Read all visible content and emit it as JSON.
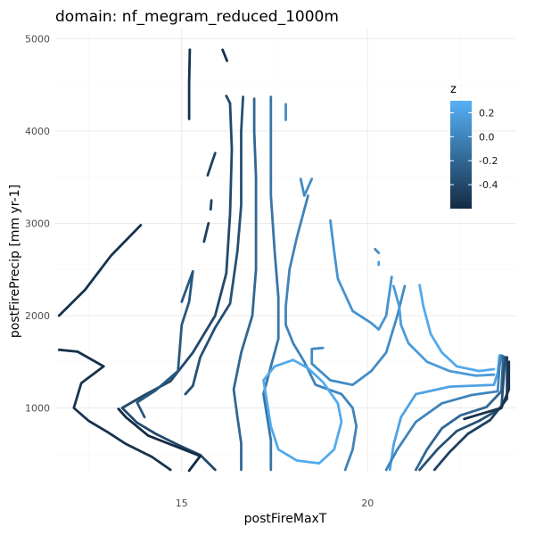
{
  "chart_data": {
    "type": "contour",
    "title": "domain: nf_megram_reduced_1000m",
    "xlabel": "postFireMaxT",
    "ylabel": "postFirePrecip [mm yr-1]",
    "xlim": [
      11.6,
      24.0
    ],
    "ylim": [
      300,
      5100
    ],
    "x_ticks": [
      {
        "value": 15,
        "label": "15"
      },
      {
        "value": 20,
        "label": "20"
      }
    ],
    "y_ticks": [
      {
        "value": 1000,
        "label": "1000"
      },
      {
        "value": 2000,
        "label": "2000"
      },
      {
        "value": 3000,
        "label": "3000"
      },
      {
        "value": 4000,
        "label": "4000"
      },
      {
        "value": 5000,
        "label": "5000"
      }
    ],
    "grid": true,
    "legend": {
      "title": "z",
      "placement": "right",
      "range": [
        -0.6,
        0.3
      ],
      "ticks": [
        {
          "value": 0.2,
          "label": "0.2"
        },
        {
          "value": 0.0,
          "label": "0.0"
        },
        {
          "value": -0.2,
          "label": "-0.2"
        },
        {
          "value": -0.4,
          "label": "-0.4"
        }
      ],
      "color_low": "#132b43",
      "color_high": "#56b1f7"
    },
    "contours": [
      {
        "z": -0.55,
        "points": [
          [
            11.7,
            2000
          ],
          [
            12.4,
            2280
          ],
          [
            13.1,
            2650
          ],
          [
            13.9,
            2980
          ]
        ]
      },
      {
        "z": -0.55,
        "points": [
          [
            11.7,
            1630
          ],
          [
            12.2,
            1610
          ],
          [
            12.9,
            1450
          ],
          [
            12.3,
            1270
          ],
          [
            12.1,
            1000
          ],
          [
            12.5,
            860
          ],
          [
            13.0,
            740
          ],
          [
            13.5,
            610
          ],
          [
            14.2,
            470
          ],
          [
            14.7,
            330
          ]
        ]
      },
      {
        "z": -0.55,
        "points": [
          [
            15.2,
            4130
          ],
          [
            15.2,
            4520
          ],
          [
            15.22,
            4880
          ]
        ]
      },
      {
        "z": -0.55,
        "points": [
          [
            16.1,
            4880
          ],
          [
            16.22,
            4760
          ]
        ]
      },
      {
        "z": -0.45,
        "points": [
          [
            15.8,
            3250
          ],
          [
            15.78,
            3150
          ]
        ]
      },
      {
        "z": -0.45,
        "points": [
          [
            15.6,
            2800
          ],
          [
            15.72,
            3000
          ]
        ]
      },
      {
        "z": -0.45,
        "points": [
          [
            15.7,
            3520
          ],
          [
            15.9,
            3760
          ]
        ]
      },
      {
        "z": -0.4,
        "points": [
          [
            15.9,
            330
          ],
          [
            15.5,
            490
          ],
          [
            14.9,
            600
          ],
          [
            14.3,
            720
          ],
          [
            13.8,
            840
          ],
          [
            13.4,
            1000
          ],
          [
            14.0,
            1140
          ],
          [
            14.7,
            1290
          ],
          [
            15.3,
            1600
          ],
          [
            15.9,
            2000
          ],
          [
            16.2,
            2460
          ],
          [
            16.3,
            3100
          ],
          [
            16.35,
            3800
          ],
          [
            16.3,
            4300
          ],
          [
            16.2,
            4380
          ]
        ]
      },
      {
        "z": -0.6,
        "points": [
          [
            13.3,
            990
          ],
          [
            13.5,
            900
          ],
          [
            14.1,
            700
          ],
          [
            14.8,
            590
          ],
          [
            15.5,
            480
          ],
          [
            15.2,
            320
          ]
        ]
      },
      {
        "z": -0.3,
        "points": [
          [
            14.0,
            900
          ],
          [
            13.8,
            1060
          ],
          [
            14.3,
            1190
          ],
          [
            14.9,
            1400
          ],
          [
            15.0,
            1900
          ],
          [
            15.2,
            2150
          ],
          [
            15.3,
            2480
          ],
          [
            15.0,
            2150
          ]
        ]
      },
      {
        "z": -0.2,
        "points": [
          [
            16.6,
            330
          ],
          [
            16.6,
            620
          ],
          [
            16.5,
            900
          ],
          [
            16.4,
            1200
          ],
          [
            16.6,
            1600
          ],
          [
            16.9,
            2000
          ],
          [
            17.0,
            2500
          ],
          [
            17.0,
            3000
          ],
          [
            17.0,
            3500
          ],
          [
            16.95,
            4000
          ],
          [
            16.95,
            4350
          ]
        ]
      },
      {
        "z": -0.35,
        "points": [
          [
            15.1,
            1150
          ],
          [
            15.3,
            1240
          ],
          [
            15.5,
            1550
          ],
          [
            15.9,
            1870
          ],
          [
            16.3,
            2130
          ],
          [
            16.5,
            2700
          ],
          [
            16.6,
            3200
          ],
          [
            16.6,
            4000
          ],
          [
            16.65,
            4370
          ]
        ]
      },
      {
        "z": -0.1,
        "points": [
          [
            17.4,
            330
          ],
          [
            17.4,
            650
          ],
          [
            17.3,
            900
          ],
          [
            17.2,
            1150
          ],
          [
            17.4,
            1450
          ],
          [
            17.6,
            1750
          ],
          [
            17.6,
            2200
          ],
          [
            17.5,
            2700
          ],
          [
            17.4,
            3300
          ],
          [
            17.4,
            4000
          ],
          [
            17.4,
            4370
          ]
        ]
      },
      {
        "z": 0.0,
        "points": [
          [
            19.4,
            330
          ],
          [
            19.6,
            550
          ],
          [
            19.7,
            800
          ],
          [
            19.6,
            1000
          ],
          [
            19.3,
            1150
          ],
          [
            18.6,
            1250
          ],
          [
            18.3,
            1500
          ],
          [
            18.0,
            1700
          ],
          [
            17.8,
            1900
          ],
          [
            17.8,
            2100
          ],
          [
            17.9,
            2500
          ],
          [
            18.1,
            2850
          ],
          [
            18.4,
            3300
          ]
        ]
      },
      {
        "z": 0.05,
        "points": [
          [
            18.2,
            3480
          ],
          [
            18.3,
            3300
          ],
          [
            18.5,
            3480
          ]
        ]
      },
      {
        "z": 0.05,
        "points": [
          [
            17.8,
            4290
          ],
          [
            17.8,
            4120
          ]
        ]
      },
      {
        "z": 0.1,
        "points": [
          [
            19.0,
            3030
          ],
          [
            19.1,
            2700
          ],
          [
            19.2,
            2400
          ],
          [
            19.6,
            2050
          ],
          [
            20.1,
            1920
          ],
          [
            20.3,
            1850
          ],
          [
            20.5,
            2000
          ],
          [
            20.65,
            2420
          ]
        ]
      },
      {
        "z": 0.05,
        "points": [
          [
            20.2,
            2720
          ],
          [
            20.3,
            2680
          ]
        ]
      },
      {
        "z": 0.15,
        "points": [
          [
            20.3,
            2580
          ],
          [
            20.3,
            2550
          ]
        ]
      },
      {
        "z": 0.05,
        "points": [
          [
            18.8,
            1650
          ],
          [
            18.5,
            1640
          ],
          [
            18.5,
            1480
          ],
          [
            19.0,
            1300
          ],
          [
            19.6,
            1250
          ],
          [
            20.1,
            1400
          ],
          [
            20.5,
            1600
          ],
          [
            20.8,
            2000
          ],
          [
            21.0,
            2320
          ]
        ]
      },
      {
        "z": 0.15,
        "points": [
          [
            20.7,
            2320
          ],
          [
            20.85,
            2100
          ],
          [
            20.9,
            1900
          ],
          [
            21.1,
            1700
          ],
          [
            21.6,
            1500
          ],
          [
            22.2,
            1400
          ],
          [
            22.9,
            1350
          ],
          [
            23.4,
            1360
          ]
        ]
      },
      {
        "z": 0.25,
        "points": [
          [
            21.4,
            2330
          ],
          [
            21.5,
            2100
          ],
          [
            21.7,
            1800
          ],
          [
            22.0,
            1600
          ],
          [
            22.4,
            1450
          ],
          [
            23.0,
            1400
          ],
          [
            23.4,
            1420
          ]
        ]
      },
      {
        "z": 0.25,
        "points": [
          [
            18.0,
            1520
          ],
          [
            18.4,
            1430
          ],
          [
            18.8,
            1280
          ],
          [
            19.2,
            1050
          ],
          [
            19.3,
            850
          ],
          [
            19.1,
            550
          ],
          [
            18.7,
            400
          ],
          [
            18.1,
            430
          ],
          [
            17.6,
            550
          ],
          [
            17.4,
            800
          ],
          [
            17.3,
            1050
          ],
          [
            17.2,
            1300
          ],
          [
            17.5,
            1450
          ],
          [
            18.0,
            1520
          ]
        ]
      },
      {
        "z": 0.2,
        "points": [
          [
            20.6,
            330
          ],
          [
            20.7,
            600
          ],
          [
            20.9,
            900
          ],
          [
            21.3,
            1150
          ],
          [
            22.2,
            1230
          ],
          [
            23.4,
            1250
          ],
          [
            23.5,
            1380
          ],
          [
            23.55,
            1570
          ]
        ]
      },
      {
        "z": 0.0,
        "points": [
          [
            20.5,
            330
          ],
          [
            20.8,
            550
          ],
          [
            21.3,
            850
          ],
          [
            22.0,
            1050
          ],
          [
            22.8,
            1140
          ],
          [
            23.5,
            1180
          ],
          [
            23.55,
            1450
          ],
          [
            23.6,
            1570
          ]
        ]
      },
      {
        "z": -0.2,
        "points": [
          [
            21.3,
            330
          ],
          [
            21.6,
            550
          ],
          [
            22.0,
            780
          ],
          [
            22.5,
            920
          ],
          [
            23.2,
            1010
          ],
          [
            23.6,
            1180
          ],
          [
            23.65,
            1560
          ]
        ]
      },
      {
        "z": -0.35,
        "points": [
          [
            21.4,
            330
          ],
          [
            21.9,
            560
          ],
          [
            22.4,
            750
          ],
          [
            23.0,
            860
          ],
          [
            23.6,
            1000
          ],
          [
            23.7,
            1550
          ]
        ]
      },
      {
        "z": -0.45,
        "points": [
          [
            21.8,
            330
          ],
          [
            22.2,
            520
          ],
          [
            22.7,
            720
          ],
          [
            23.3,
            870
          ],
          [
            23.75,
            1100
          ],
          [
            23.75,
            1550
          ]
        ]
      },
      {
        "z": -0.55,
        "points": [
          [
            22.6,
            880
          ],
          [
            23.0,
            930
          ],
          [
            23.6,
            1000
          ],
          [
            23.8,
            1200
          ],
          [
            23.8,
            1500
          ]
        ]
      }
    ]
  }
}
